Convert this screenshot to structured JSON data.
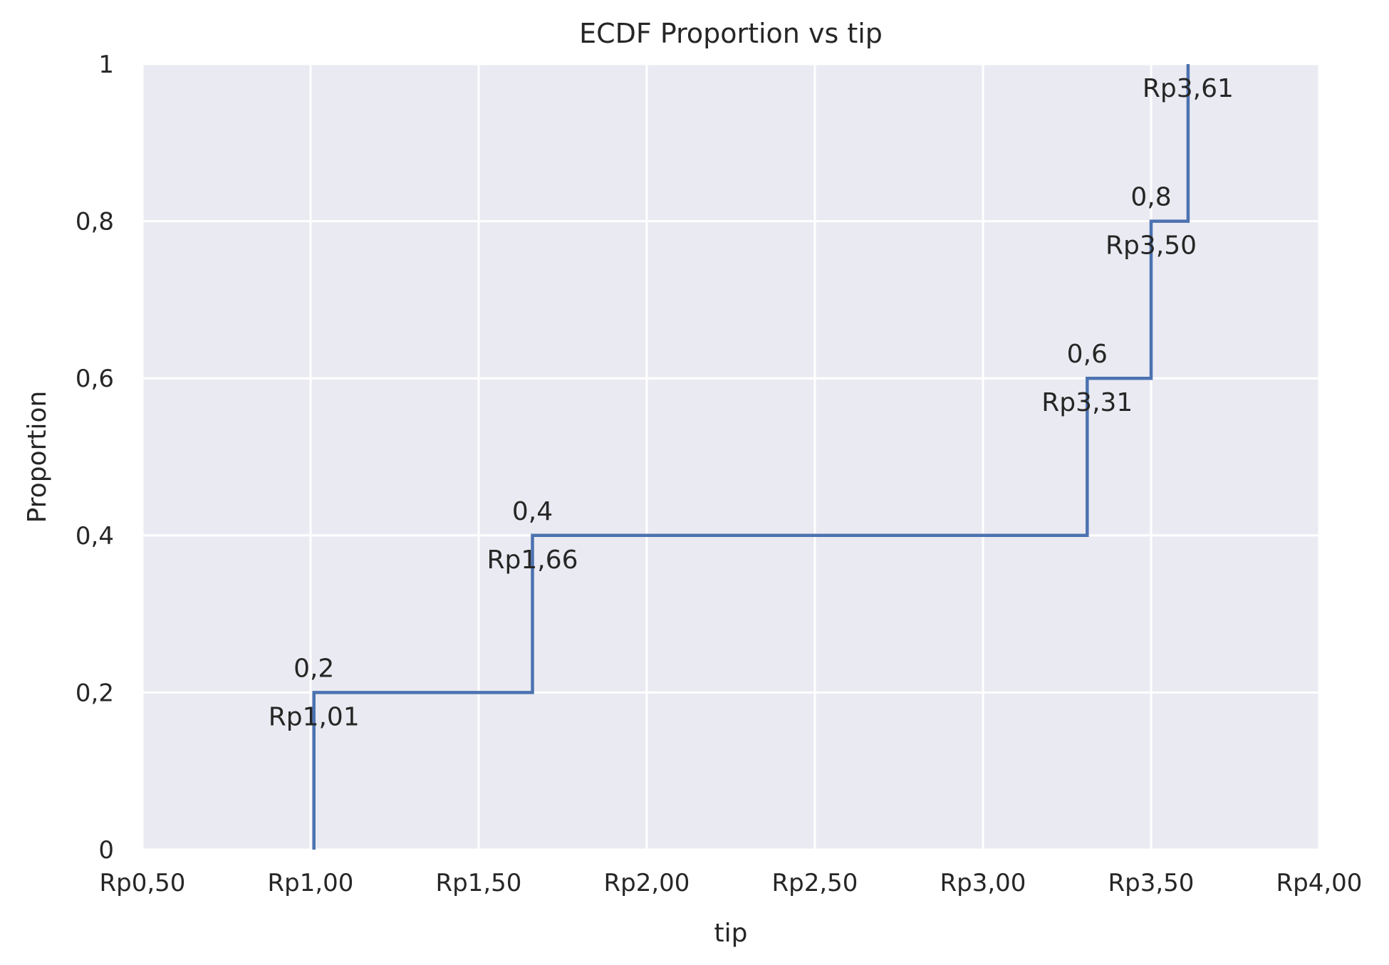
{
  "chart_data": {
    "type": "line",
    "subtype": "ecdf-step",
    "title": "ECDF Proportion vs tip",
    "xlabel": "tip",
    "ylabel": "Proportion",
    "xlim": [
      0.5,
      4.0
    ],
    "ylim": [
      0,
      1
    ],
    "x_ticks": [
      0.5,
      1.0,
      1.5,
      2.0,
      2.5,
      3.0,
      3.5,
      4.0
    ],
    "x_tick_labels": [
      "Rp0,50",
      "Rp1,00",
      "Rp1,50",
      "Rp2,00",
      "Rp2,50",
      "Rp3,00",
      "Rp3,50",
      "Rp4,00"
    ],
    "y_ticks": [
      0,
      0.2,
      0.4,
      0.6,
      0.8,
      1.0
    ],
    "y_tick_labels": [
      "0",
      "0,2",
      "0,4",
      "0,6",
      "0,8",
      "1"
    ],
    "grid": true,
    "legend": "none",
    "series": [
      {
        "x": [
          1.01,
          1.66,
          3.31,
          3.5,
          3.61
        ],
        "y": [
          0.2,
          0.4,
          0.6,
          0.8,
          1.0
        ],
        "color": "#4c72b0"
      }
    ],
    "annotations": [
      {
        "x": 1.01,
        "y": 0.2,
        "value_label": "0,2",
        "x_label": "Rp1,01"
      },
      {
        "x": 1.66,
        "y": 0.4,
        "value_label": "0,4",
        "x_label": "Rp1,66"
      },
      {
        "x": 3.31,
        "y": 0.6,
        "value_label": "0,6",
        "x_label": "Rp3,31"
      },
      {
        "x": 3.5,
        "y": 0.8,
        "value_label": "0,8",
        "x_label": "Rp3,50"
      },
      {
        "x": 3.61,
        "y": 1.0,
        "value_label": "",
        "x_label": "Rp3,61"
      }
    ],
    "colors": {
      "plot_background": "#eaeaf2",
      "grid": "#ffffff",
      "line": "#4c72b0",
      "text": "#262626"
    }
  }
}
